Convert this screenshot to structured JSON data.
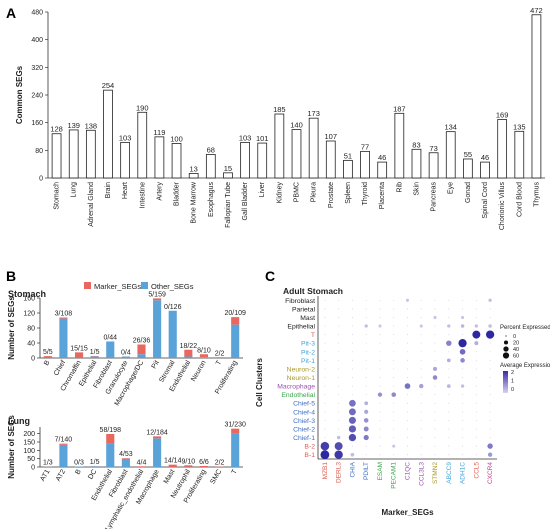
{
  "panels": {
    "a": "A",
    "b": "B",
    "c": "C"
  },
  "colors": {
    "bar_a": "#ffffff",
    "marker": "#e8675f",
    "other": "#5aa3d9",
    "dot_high": "#3a2aa8",
    "dot_low": "#d7d3ef"
  },
  "chart_data": [
    {
      "type": "bar",
      "ylabel": "Common SEGs",
      "ylim": [
        0,
        480
      ],
      "yticks": [
        0,
        80,
        160,
        240,
        320,
        400,
        480
      ],
      "categories": [
        "Stomach",
        "Lung",
        "Adrenal Gland",
        "Brain",
        "Heart",
        "Intestine",
        "Artery",
        "Bladder",
        "Bone Marrow",
        "Esophagus",
        "Fallopian Tube",
        "Gall Bladder",
        "Liver",
        "Kidney",
        "PBMC",
        "Pleura",
        "Prostate",
        "Spleen",
        "Thyroid",
        "Placenta",
        "Rib",
        "Skin",
        "Pancreas",
        "Eye",
        "Gonad",
        "Spinal Cord",
        "Chorionic Villus",
        "Cord Blood",
        "Thymus"
      ],
      "values": [
        128,
        139,
        138,
        254,
        103,
        190,
        119,
        100,
        13,
        68,
        15,
        103,
        101,
        185,
        140,
        173,
        107,
        51,
        77,
        46,
        187,
        83,
        73,
        134,
        55,
        46,
        169,
        135,
        472
      ]
    },
    {
      "type": "bar",
      "title": "Stomach",
      "ylabel": "Number of SEGs",
      "ylim": [
        0,
        160
      ],
      "yticks": [
        0,
        40,
        80,
        120,
        160
      ],
      "legend": [
        "Marker_SEGs",
        "Other_SEGs"
      ],
      "legend_position": "top",
      "categories": [
        "B",
        "Chief",
        "Chromaffin",
        "Epithelial",
        "Fibroblast",
        "Granulocyte",
        "Macrophage/DC",
        "Pit",
        "Stromal",
        "Endothelial",
        "Neuron",
        "T",
        "Proliferating"
      ],
      "labels": [
        "5/5",
        "3/108",
        "15/15",
        "1/5",
        "0/44",
        "0/4",
        "26/36",
        "5/159",
        "0/126",
        "18/22",
        "8/10",
        "2/2",
        "20/109"
      ],
      "series": [
        {
          "name": "Marker_SEGs",
          "values": [
            5,
            3,
            15,
            1,
            0,
            0,
            26,
            5,
            0,
            18,
            8,
            2,
            20
          ]
        },
        {
          "name": "Other_SEGs",
          "values": [
            0,
            105,
            0,
            4,
            44,
            4,
            10,
            154,
            126,
            4,
            2,
            0,
            89
          ]
        }
      ]
    },
    {
      "type": "bar",
      "title": "Lung",
      "ylabel": "Number of SEGs",
      "ylim": [
        0,
        240
      ],
      "yticks": [
        0,
        50,
        100,
        150,
        200
      ],
      "categories": [
        "AT1",
        "AT2",
        "B",
        "DC",
        "Endothelial",
        "Fibroblast",
        "Lymphatic_endothelial",
        "Macrophage",
        "Mast",
        "Neutrophil",
        "Proliferating",
        "SMC",
        "T"
      ],
      "labels": [
        "1/3",
        "7/140",
        "0/3",
        "1/5",
        "58/198",
        "4/53",
        "4/4",
        "12/184",
        "14/14",
        "9/10",
        "6/6",
        "2/2",
        "31/230"
      ],
      "series": [
        {
          "name": "Marker_SEGs",
          "values": [
            1,
            7,
            0,
            1,
            58,
            4,
            4,
            12,
            14,
            9,
            6,
            2,
            31
          ]
        },
        {
          "name": "Other_SEGs",
          "values": [
            2,
            133,
            3,
            4,
            140,
            49,
            0,
            172,
            0,
            1,
            0,
            0,
            199
          ]
        }
      ]
    },
    {
      "type": "scatter",
      "title": "Adult Stomach",
      "xlabel": "Marker_SEGs",
      "ylabel": "Cell Clusters",
      "genes": [
        "MZB1",
        "DERL3",
        "CHIA",
        "PDILT",
        "ESAM",
        "PECAM1",
        "C1QC",
        "CCL3L3",
        "STMN2",
        "ABCC9",
        "ADH1C",
        "CCL5",
        "CXCR4"
      ],
      "gene_colors": [
        "#e05a4e",
        "#e05a4e",
        "#3f6fc4",
        "#3f6fc4",
        "#3aa64a",
        "#3aa64a",
        "#9a50b5",
        "#9a50b5",
        "#a89a2a",
        "#43a3d8",
        "#43a3d8",
        "#e05a4e",
        "#c43b8a"
      ],
      "clusters": [
        "B-1",
        "B-2",
        "Chief-1",
        "Chief-2",
        "Chief-3",
        "Chief-4",
        "Chief-5",
        "Endothelial",
        "Macrophage",
        "Neuron-1",
        "Neuron-2",
        "Pit-1",
        "Pit-2",
        "Pit-3",
        "T",
        "Epithelial",
        "Mast",
        "Parietal",
        "Fibroblast"
      ],
      "cluster_colors": [
        "#e05a4e",
        "#e05a4e",
        "#3f6fc4",
        "#3f6fc4",
        "#3f6fc4",
        "#3f6fc4",
        "#3f6fc4",
        "#3aa64a",
        "#9a50b5",
        "#a89a2a",
        "#a89a2a",
        "#43a3d8",
        "#43a3d8",
        "#43a3d8",
        "#e05a4e",
        "#222222",
        "#222222",
        "#222222",
        "#222222"
      ],
      "legend_pct_title": "Percent Expressed",
      "legend_pct": [
        0,
        20,
        40,
        60
      ],
      "legend_avg_title": "Average Expression",
      "legend_avg_ticks": [
        2,
        1,
        0
      ],
      "dots": [
        {
          "gene": "MZB1",
          "cluster": "B-1",
          "pct": 70,
          "avg": 2.3
        },
        {
          "gene": "MZB1",
          "cluster": "B-2",
          "pct": 65,
          "avg": 2.0
        },
        {
          "gene": "DERL3",
          "cluster": "B-1",
          "pct": 62,
          "avg": 2.1
        },
        {
          "gene": "DERL3",
          "cluster": "B-2",
          "pct": 55,
          "avg": 1.8
        },
        {
          "gene": "DERL3",
          "cluster": "Chief-1",
          "pct": 5,
          "avg": 0.3
        },
        {
          "gene": "CHIA",
          "cluster": "Chief-1",
          "pct": 45,
          "avg": 1.8
        },
        {
          "gene": "CHIA",
          "cluster": "Chief-2",
          "pct": 42,
          "avg": 1.6
        },
        {
          "gene": "CHIA",
          "cluster": "Chief-3",
          "pct": 40,
          "avg": 1.5
        },
        {
          "gene": "CHIA",
          "cluster": "Chief-4",
          "pct": 38,
          "avg": 1.4
        },
        {
          "gene": "CHIA",
          "cluster": "Chief-5",
          "pct": 35,
          "avg": 1.3
        },
        {
          "gene": "CHIA",
          "cluster": "B-1",
          "pct": 6,
          "avg": 0.3
        },
        {
          "gene": "PDILT",
          "cluster": "Chief-1",
          "pct": 18,
          "avg": 1.2
        },
        {
          "gene": "PDILT",
          "cluster": "Chief-2",
          "pct": 15,
          "avg": 1.0
        },
        {
          "gene": "PDILT",
          "cluster": "Chief-3",
          "pct": 12,
          "avg": 0.9
        },
        {
          "gene": "PDILT",
          "cluster": "Chief-4",
          "pct": 8,
          "avg": 0.6
        },
        {
          "gene": "PDILT",
          "cluster": "Chief-5",
          "pct": 6,
          "avg": 0.5
        },
        {
          "gene": "PDILT",
          "cluster": "Epithelial",
          "pct": 4,
          "avg": 0.3
        },
        {
          "gene": "ESAM",
          "cluster": "Endothelial",
          "pct": 10,
          "avg": 0.9
        },
        {
          "gene": "ESAM",
          "cluster": "Epithelial",
          "pct": 3,
          "avg": 0.2
        },
        {
          "gene": "PECAM1",
          "cluster": "Endothelial",
          "pct": 12,
          "avg": 1.0
        },
        {
          "gene": "PECAM1",
          "cluster": "B-2",
          "pct": 3,
          "avg": 0.2
        },
        {
          "gene": "C1QC",
          "cluster": "Macrophage",
          "pct": 22,
          "avg": 1.3
        },
        {
          "gene": "C1QC",
          "cluster": "Fibroblast",
          "pct": 3,
          "avg": 0.2
        },
        {
          "gene": "CCL3L3",
          "cluster": "Macrophage",
          "pct": 10,
          "avg": 0.7
        },
        {
          "gene": "CCL3L3",
          "cluster": "Epithelial",
          "pct": 3,
          "avg": 0.2
        },
        {
          "gene": "STMN2",
          "cluster": "Neuron-1",
          "pct": 12,
          "avg": 1.0
        },
        {
          "gene": "STMN2",
          "cluster": "Neuron-2",
          "pct": 8,
          "avg": 0.6
        },
        {
          "gene": "STMN2",
          "cluster": "Mast",
          "pct": 3,
          "avg": 0.2
        },
        {
          "gene": "ABCC9",
          "cluster": "Pit-1",
          "pct": 6,
          "avg": 0.5
        },
        {
          "gene": "ABCC9",
          "cluster": "Pit-3",
          "pct": 20,
          "avg": 1.1
        },
        {
          "gene": "ABCC9",
          "cluster": "Macrophage",
          "pct": 6,
          "avg": 0.4
        },
        {
          "gene": "ABCC9",
          "cluster": "Epithelial",
          "pct": 4,
          "avg": 0.3
        },
        {
          "gene": "ADH1C",
          "cluster": "Pit-1",
          "pct": 12,
          "avg": 1.0
        },
        {
          "gene": "ADH1C",
          "cluster": "Pit-2",
          "pct": 22,
          "avg": 1.4
        },
        {
          "gene": "ADH1C",
          "cluster": "Pit-3",
          "pct": 60,
          "avg": 2.3
        },
        {
          "gene": "ADH1C",
          "cluster": "Macrophage",
          "pct": 4,
          "avg": 0.3
        },
        {
          "gene": "ADH1C",
          "cluster": "Epithelial",
          "pct": 5,
          "avg": 0.4
        },
        {
          "gene": "ADH1C",
          "cluster": "Mast",
          "pct": 3,
          "avg": 0.2
        },
        {
          "gene": "CCL5",
          "cluster": "T",
          "pct": 55,
          "avg": 2.3
        },
        {
          "gene": "CCL5",
          "cluster": "Pit-3",
          "pct": 8,
          "avg": 0.5
        },
        {
          "gene": "CCL5",
          "cluster": "Epithelial",
          "pct": 4,
          "avg": 0.3
        },
        {
          "gene": "CXCR4",
          "cluster": "T",
          "pct": 60,
          "avg": 2.3
        },
        {
          "gene": "CXCR4",
          "cluster": "B-1",
          "pct": 10,
          "avg": 0.8
        },
        {
          "gene": "CXCR4",
          "cluster": "B-2",
          "pct": 20,
          "avg": 1.2
        },
        {
          "gene": "CXCR4",
          "cluster": "Epithelial",
          "pct": 5,
          "avg": 0.3
        },
        {
          "gene": "CXCR4",
          "cluster": "Fibroblast",
          "pct": 4,
          "avg": 0.3
        }
      ]
    }
  ]
}
